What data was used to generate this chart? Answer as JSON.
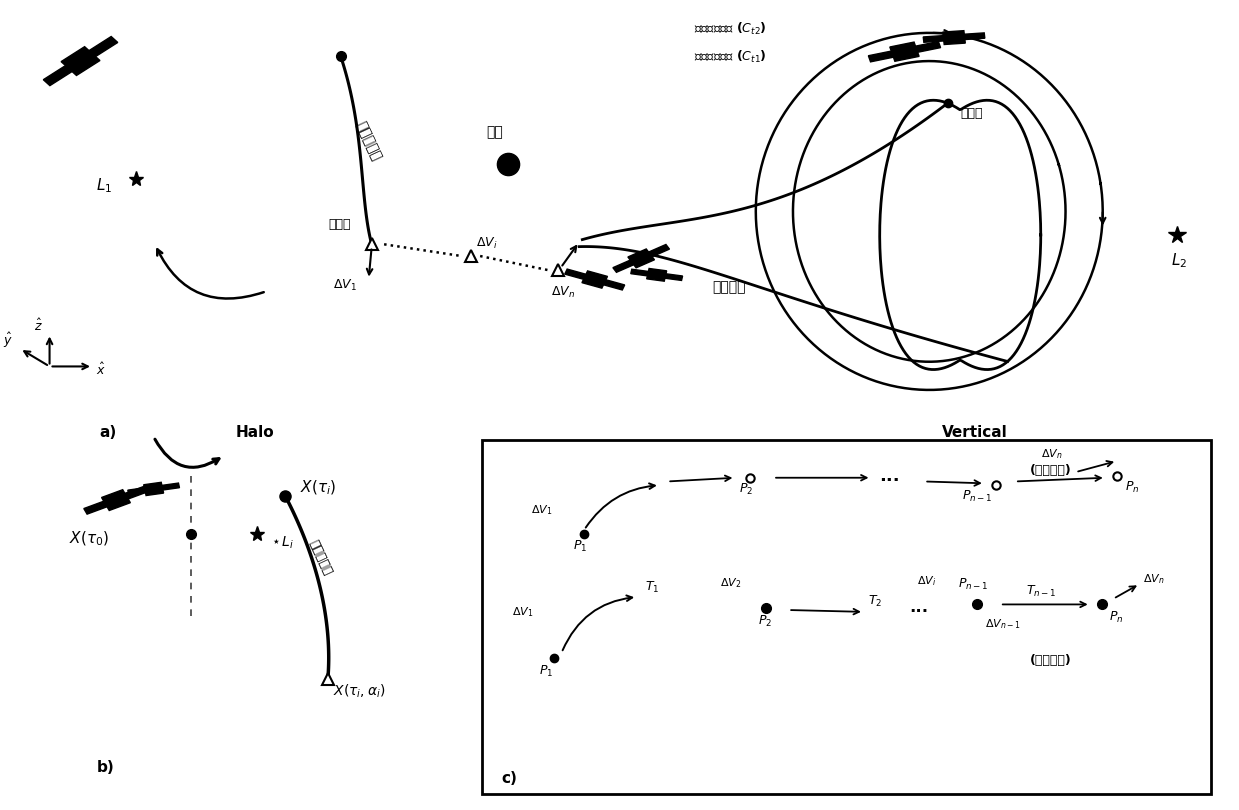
{
  "bg_color": "#ffffff",
  "panel_a_label": "a)",
  "panel_b_label": "b)",
  "panel_c_label": "c)",
  "halo_label": "Halo",
  "vertical_label": "Vertical",
  "L1_label": "$L_1$",
  "L2_label": "$L_2$",
  "moon_label": "月球",
  "unstable_label": "不稳定流形",
  "stable_label": "稳定流形",
  "maneuver_label": "机动点",
  "capture_label": "捕获点",
  "desired_orbit_label": "期望目标轨道 ($C_{t2}$)",
  "initial_orbit_label": "初始目标轨道 ($C_{t1}$)",
  "dV1": "$\\Delta V_1$",
  "dVi": "$\\Delta V_i$",
  "dVn": "$\\Delta V_n$",
  "dV2": "$\\Delta V_2$",
  "dVn1": "$\\Delta V_{n-1}$",
  "Xtau0": "$X(\\tau_0)$",
  "Xtaui": "$X(\\tau_i)$",
  "Xtauia": "$X(\\tau_i, \\alpha_i)$",
  "Li": "$L_i$",
  "T1": "$T_1$",
  "T2": "$T_2$",
  "Tn1": "$T_{n-1}$",
  "P1": "$P_1$",
  "P2": "$P_2$",
  "Pn": "$P_n$",
  "Pn1": "$P_{n-1}$",
  "dots": "...",
  "init_traj": "(初始轨迹)",
  "desired_traj": "(期望轨迹)"
}
